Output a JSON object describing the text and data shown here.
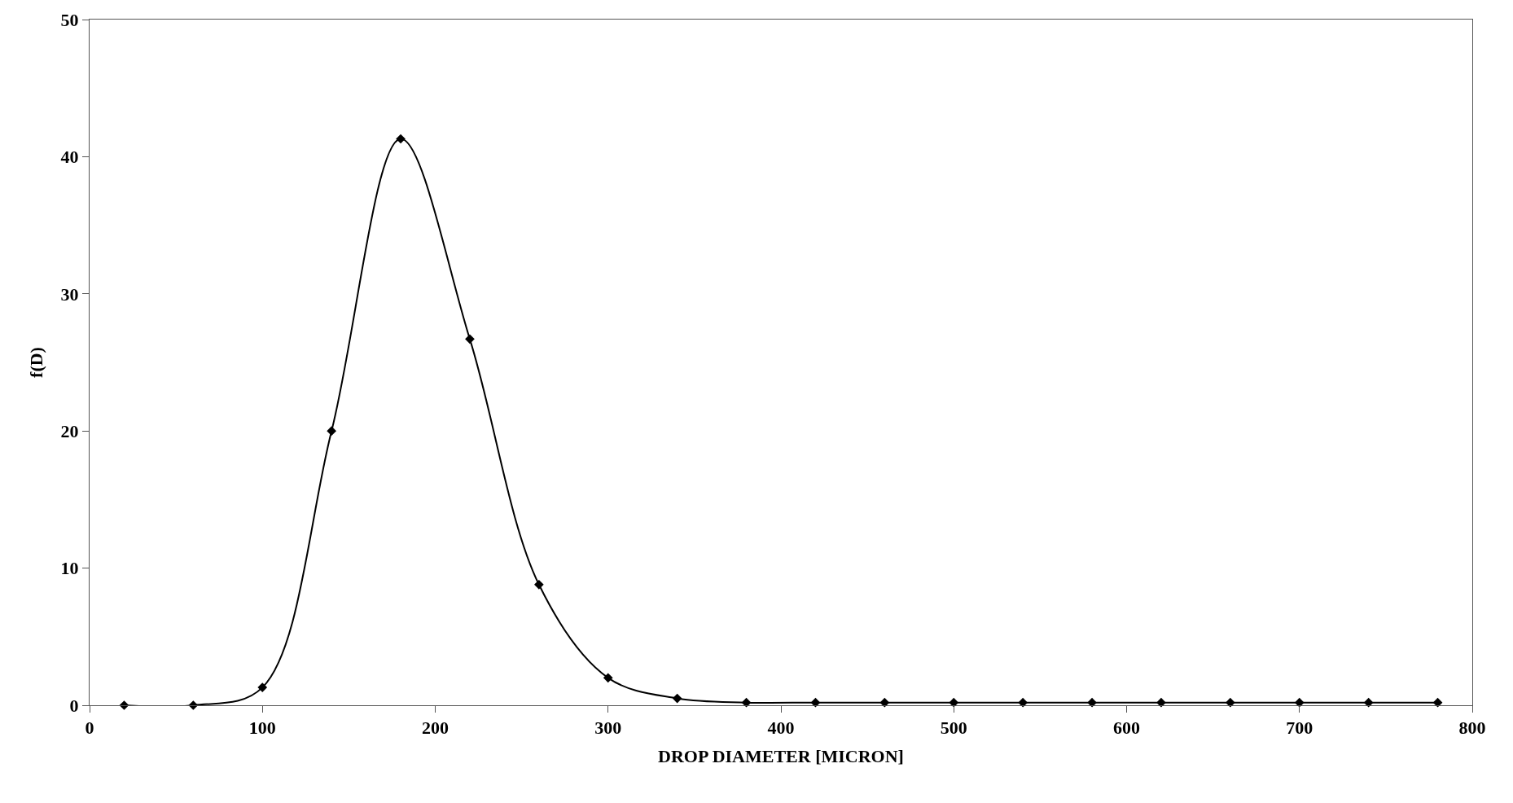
{
  "chart_data": {
    "type": "line",
    "xlabel": "DROP DIAMETER [MICRON]",
    "ylabel": "f(D)",
    "x": [
      20,
      60,
      100,
      140,
      180,
      220,
      260,
      300,
      340,
      380,
      420,
      460,
      500,
      540,
      580,
      620,
      660,
      700,
      740,
      780
    ],
    "series": [
      {
        "color": "#000000",
        "values": [
          0,
          0,
          1.3,
          20,
          41.3,
          26.7,
          8.8,
          2.0,
          0.5,
          0.2,
          0.2,
          0.2,
          0.2,
          0.2,
          0.2,
          0.2,
          0.2,
          0.2,
          0.2,
          0.2
        ]
      }
    ],
    "xlim": [
      0,
      800
    ],
    "ylim": [
      0,
      50
    ],
    "xticks": [
      0,
      100,
      200,
      300,
      400,
      500,
      600,
      700,
      800
    ],
    "yticks": [
      0,
      10,
      20,
      30,
      40,
      50
    ],
    "marker": "diamond",
    "line_style": "solid",
    "legend": false
  }
}
